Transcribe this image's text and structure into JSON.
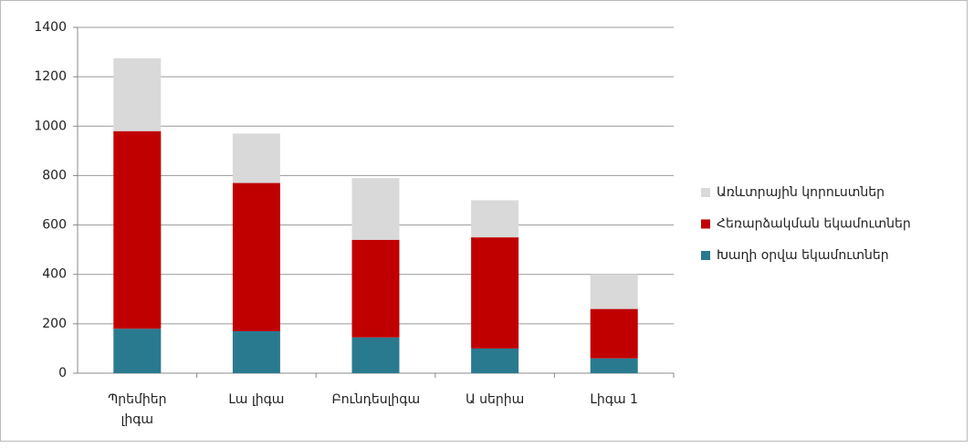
{
  "chart_data": {
    "type": "bar",
    "stacked": true,
    "categories": [
      "Պրեմիեր լիգա",
      "Լա լիգա",
      "Բունդեսլիգա",
      "Ա սերիա",
      "Լիգա 1"
    ],
    "series": [
      {
        "name": "Խաղի օրվա եկամուտներ",
        "color": "#2a7a8f",
        "values": [
          180,
          170,
          145,
          100,
          60
        ]
      },
      {
        "name": "Հեռարձակման եկամուտներ",
        "color": "#c00000",
        "values": [
          800,
          600,
          395,
          450,
          200
        ]
      },
      {
        "name": "Առևտրային կորուստներ",
        "color": "#d9d9d9",
        "values": [
          295,
          200,
          250,
          150,
          140
        ]
      }
    ],
    "ylim": [
      0,
      1400
    ],
    "yticks": [
      0,
      200,
      400,
      600,
      800,
      1000,
      1200,
      1400
    ],
    "grid": true,
    "legend": "right"
  }
}
